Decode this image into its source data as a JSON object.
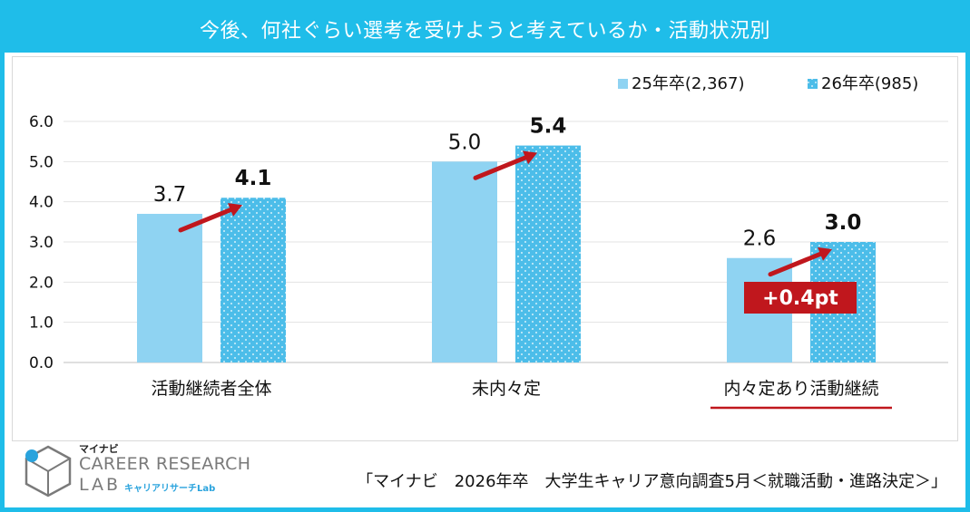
{
  "title": "今後、何社ぐらい選考を受けようと考えているか・活動状況別",
  "chart_data": {
    "type": "bar",
    "title": "今後、何社ぐらい選考を受けようと考えているか・活動状況別",
    "categories": [
      "活動継続者全体",
      "未内々定",
      "内々定あり活動継続"
    ],
    "series": [
      {
        "name": "25年卒(2,367)",
        "values": [
          3.7,
          5.0,
          2.6
        ],
        "labels": [
          "3.7",
          "5.0",
          "2.6"
        ],
        "color": "#8fd3f2",
        "pattern": "solid"
      },
      {
        "name": "26年卒(985)",
        "values": [
          4.1,
          5.4,
          3.0
        ],
        "labels": [
          "4.1",
          "5.4",
          "3.0"
        ],
        "color": "#4cbde9",
        "pattern": "dotted"
      }
    ],
    "yticks": [
      "0.0",
      "1.0",
      "2.0",
      "3.0",
      "4.0",
      "5.0",
      "6.0"
    ],
    "ylim": [
      0,
      6
    ],
    "grid": true,
    "legend": "top-right",
    "annotation": "+0.4pt",
    "highlighted_category": "内々定あり活動継続"
  },
  "colors": {
    "frame": "#1fbde9",
    "arrow": "#c0171d",
    "badge": "#c0171d"
  },
  "logo": {
    "mynavi": "マイナビ",
    "line1": "CAREER RESEARCH",
    "line2": "LAB",
    "sub": "キャリアリサーチLab",
    "icon": "cube-logo-icon"
  },
  "source": "「マイナビ　2026年卒　大学生キャリア意向調査5月＜就職活動・進路決定＞」"
}
